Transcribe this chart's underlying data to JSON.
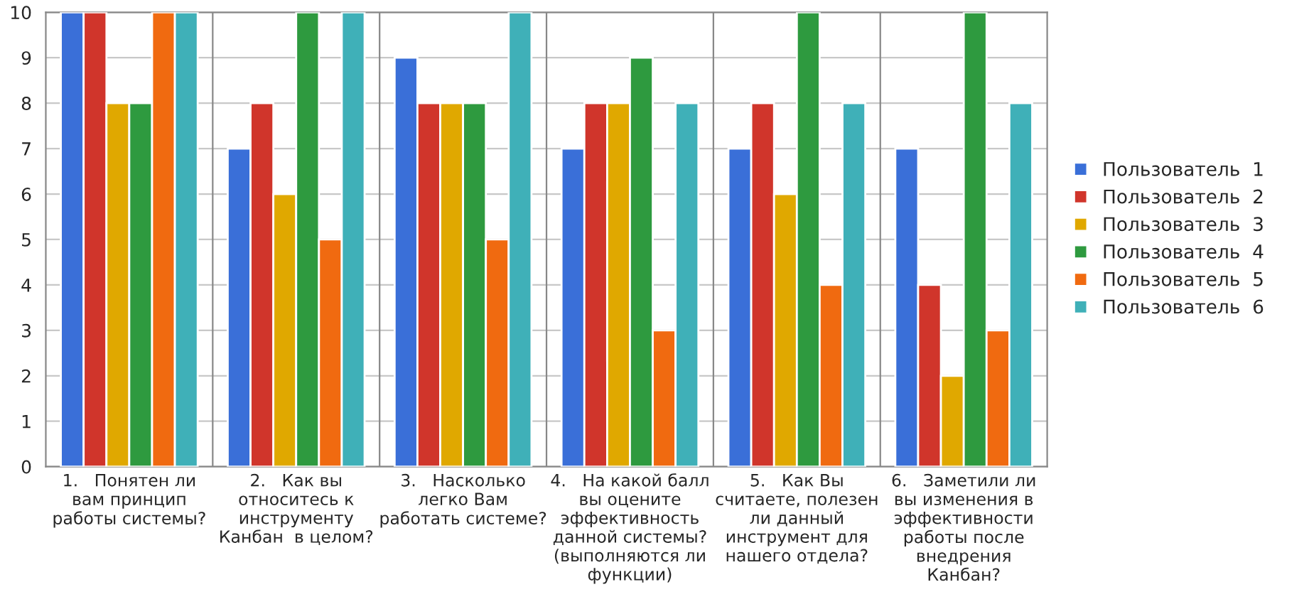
{
  "chart_data": {
    "type": "bar",
    "categories": [
      "1.   Понятен ли\nвам принцип\nработы системы?",
      "2.   Как вы\nотноситесь к\nинструменту\nКанбан  в целом?",
      "3.   Насколько\nлегко Вам\nработать системе?",
      "4.   На какой балл\nвы оцените\nэффективность\nданной системы?\n(выполняются ли\nфункции)",
      "5.   Как Вы\nсчитаете, полезен\nли данный\nинструмент для\nнашего отдела?",
      "6.   Заметили ли\nвы изменения в\nэффективности\nработы после\nвнедрения\nКанбан?"
    ],
    "series": [
      {
        "name": "Пользователь  1",
        "color": "#3a6fd8",
        "values": [
          10,
          7,
          9,
          7,
          7,
          7
        ]
      },
      {
        "name": "Пользователь  2",
        "color": "#d0352b",
        "values": [
          10,
          8,
          8,
          8,
          8,
          4
        ]
      },
      {
        "name": "Пользователь  3",
        "color": "#e0a800",
        "values": [
          8,
          6,
          8,
          8,
          6,
          2
        ]
      },
      {
        "name": "Пользователь  4",
        "color": "#2e9a3f",
        "values": [
          8,
          10,
          8,
          9,
          10,
          10
        ]
      },
      {
        "name": "Пользователь  5",
        "color": "#f06a10",
        "values": [
          10,
          5,
          5,
          3,
          4,
          3
        ]
      },
      {
        "name": "Пользователь  6",
        "color": "#3fb0b8",
        "values": [
          10,
          10,
          10,
          8,
          8,
          8
        ]
      }
    ],
    "ylim": [
      0,
      10
    ],
    "yticks": [
      0,
      1,
      2,
      3,
      4,
      5,
      6,
      7,
      8,
      9,
      10
    ],
    "grid": "y",
    "legend": "right"
  }
}
